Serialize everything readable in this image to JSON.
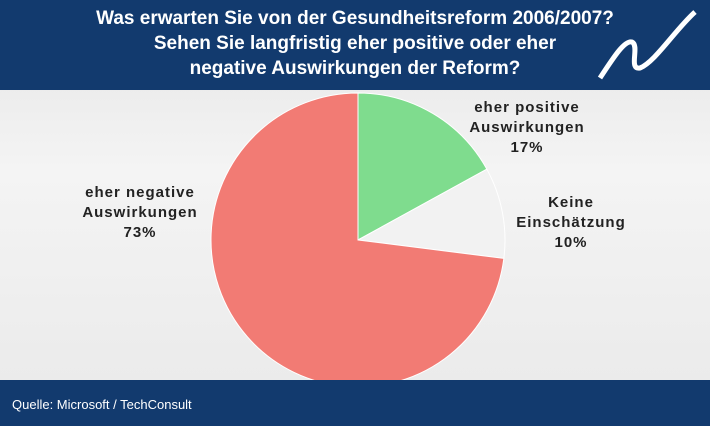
{
  "chart_data": {
    "type": "pie",
    "title": [
      "Was erwarten Sie von der Gesundheitsreform 2006/2007?",
      "Sehen Sie langfristig eher positive oder eher",
      "negative Auswirkungen der Reform?"
    ],
    "categories": [
      "eher positive Auswirkungen",
      "Keine Einschätzung",
      "eher negative Auswirkungen"
    ],
    "values": [
      17,
      10,
      73
    ],
    "value_labels": [
      "17%",
      "10%",
      "73%"
    ],
    "colors": [
      "#7fdc8e",
      "#f2f2f2",
      "#f27b74"
    ],
    "source": "Quelle: Microsoft / TechConsult"
  }
}
